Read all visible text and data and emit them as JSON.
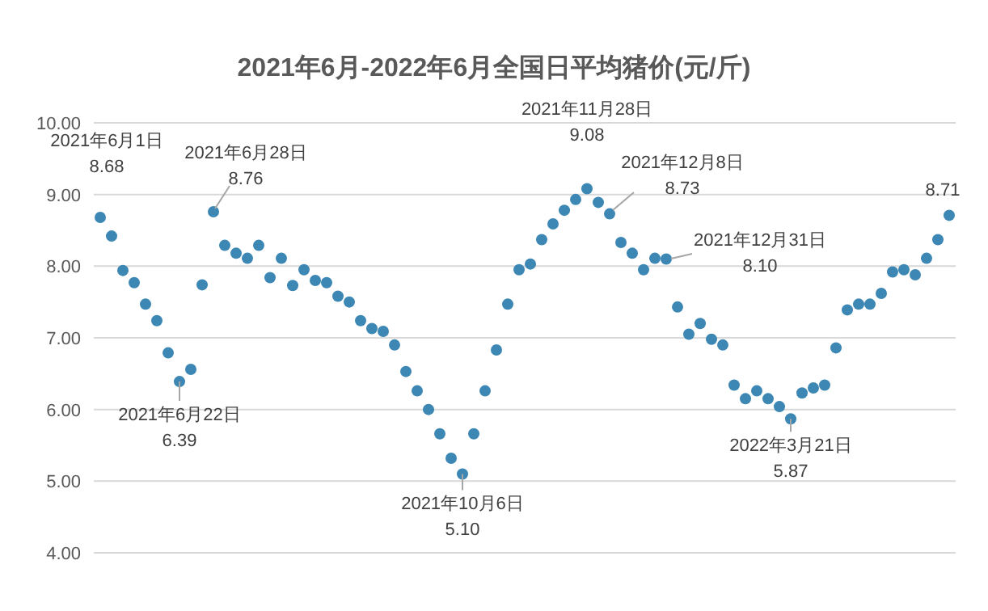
{
  "chart_data": {
    "type": "scatter",
    "title": "2021年6月-2022年6月全国日平均猪价(元/斤)",
    "categories": [
      null,
      null,
      null,
      null,
      null,
      null,
      null,
      null,
      null,
      null,
      null,
      null,
      null,
      null,
      null,
      null,
      null,
      null,
      null,
      null,
      null,
      null,
      null,
      null,
      null,
      null,
      null,
      null,
      null,
      null,
      null,
      null,
      null,
      null,
      null,
      null,
      null,
      null,
      null,
      null,
      null,
      null,
      null,
      null,
      null,
      null,
      null,
      null,
      null,
      null,
      null,
      null,
      null,
      null,
      null,
      null,
      null,
      null,
      null,
      null,
      null,
      null,
      null,
      null,
      null,
      null,
      null,
      null,
      null,
      null,
      null,
      null,
      null,
      null,
      null,
      null
    ],
    "values": [
      8.68,
      8.42,
      7.94,
      7.77,
      7.47,
      7.24,
      6.79,
      6.39,
      6.56,
      7.74,
      8.76,
      8.29,
      8.18,
      8.11,
      8.29,
      7.84,
      8.11,
      7.73,
      7.95,
      7.8,
      7.77,
      7.58,
      7.5,
      7.24,
      7.13,
      7.09,
      6.9,
      6.53,
      6.26,
      6.0,
      5.66,
      5.32,
      5.1,
      5.66,
      6.26,
      6.83,
      7.47,
      7.95,
      8.03,
      8.37,
      8.59,
      8.78,
      8.93,
      9.08,
      8.89,
      8.73,
      8.33,
      8.18,
      7.95,
      8.11,
      8.1,
      7.43,
      7.05,
      7.2,
      6.98,
      6.9,
      6.34,
      6.15,
      6.26,
      6.15,
      6.04,
      5.87,
      6.23,
      6.3,
      6.34,
      6.86,
      7.39,
      7.47,
      7.47,
      7.62,
      7.92,
      7.95,
      7.88,
      8.11,
      8.37,
      8.71
    ],
    "color": "#3d87b4",
    "marker": "circle",
    "grid": "y",
    "ylim": [
      4,
      10
    ],
    "yticks": [
      {
        "value": 4,
        "label": "4.00"
      },
      {
        "value": 5,
        "label": "5.00"
      },
      {
        "value": 6,
        "label": "6.00"
      },
      {
        "value": 7,
        "label": "7.00"
      },
      {
        "value": 8,
        "label": "8.00"
      },
      {
        "value": 9,
        "label": "9.00"
      },
      {
        "value": 10,
        "label": "10.00"
      }
    ],
    "annotations": [
      {
        "text": "2021年6月1日\n8.68",
        "y": 8.68
      },
      "2021年6月28日\n8.76",
      {
        "text": "2021年6月22日\n6.39",
        "y": 6.39
      },
      {
        "text": "2021年10月6日\n5.10",
        "y": 5.1
      },
      {
        "text": "2021年11月28日\n9.08",
        "y": 9.08
      },
      "2021年12月8日\n8.73",
      "2021年12月31日\n8.10",
      {
        "text": "2022年3月21日\n5.87",
        "y": 5.87
      },
      {
        "text": "8.71",
        "y": 8.71
      }
    ]
  }
}
